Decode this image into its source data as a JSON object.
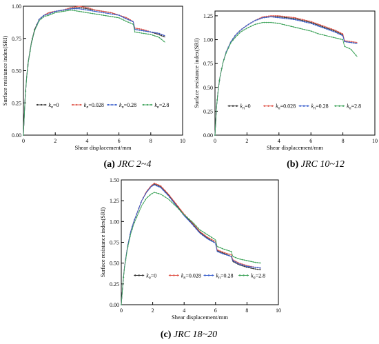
{
  "chart_data": [
    {
      "panel": "a",
      "type": "line",
      "caption_letter": "(a)",
      "caption_text": "JRC 2~4",
      "xlabel": "Shear displacement/mm",
      "ylabel": "Surface resistance index(SRI)",
      "xlim": [
        0,
        10
      ],
      "ylim": [
        0,
        1.0
      ],
      "xticks": [
        0,
        2,
        4,
        6,
        8,
        10
      ],
      "yticks": [
        0.0,
        0.25,
        0.5,
        0.75,
        1.0
      ],
      "ytick_labels": [
        "0.00",
        "0.25",
        "0.50",
        "0.75",
        "1.00"
      ],
      "legend_position": "bottom",
      "series": [
        {
          "name": "kn=0",
          "color": "#333333",
          "x": [
            0,
            0.1,
            0.2,
            0.3,
            0.5,
            0.7,
            1.0,
            1.3,
            1.6,
            2.0,
            2.5,
            3.0,
            3.5,
            4.0,
            4.5,
            5.0,
            5.5,
            6.0,
            6.5,
            6.9,
            7.0,
            7.5,
            8.0,
            8.5,
            8.9
          ],
          "y": [
            0,
            0.28,
            0.45,
            0.57,
            0.72,
            0.82,
            0.9,
            0.93,
            0.95,
            0.96,
            0.97,
            0.98,
            0.99,
            0.98,
            0.97,
            0.96,
            0.95,
            0.93,
            0.9,
            0.88,
            0.82,
            0.81,
            0.8,
            0.78,
            0.76
          ]
        },
        {
          "name": "kn=0.028",
          "color": "#e0554a",
          "x": [
            0,
            0.1,
            0.2,
            0.3,
            0.5,
            0.7,
            1.0,
            1.3,
            1.6,
            2.0,
            2.5,
            3.0,
            3.5,
            4.0,
            4.5,
            5.0,
            5.5,
            6.0,
            6.5,
            6.9,
            7.0,
            7.5,
            8.0,
            8.5,
            8.9
          ],
          "y": [
            0,
            0.27,
            0.44,
            0.56,
            0.71,
            0.81,
            0.9,
            0.93,
            0.95,
            0.96,
            0.97,
            0.99,
            1.0,
            0.99,
            0.97,
            0.96,
            0.95,
            0.93,
            0.91,
            0.88,
            0.83,
            0.82,
            0.8,
            0.79,
            0.77
          ]
        },
        {
          "name": "kn=0.28",
          "color": "#3a5fcd",
          "x": [
            0,
            0.1,
            0.2,
            0.3,
            0.5,
            0.7,
            1.0,
            1.3,
            1.6,
            2.0,
            2.5,
            3.0,
            3.5,
            4.0,
            4.5,
            5.0,
            5.5,
            6.0,
            6.5,
            6.9,
            7.0,
            7.5,
            8.0,
            8.5,
            8.9
          ],
          "y": [
            0,
            0.27,
            0.44,
            0.56,
            0.71,
            0.81,
            0.9,
            0.93,
            0.94,
            0.96,
            0.97,
            0.98,
            0.98,
            0.97,
            0.96,
            0.95,
            0.94,
            0.93,
            0.9,
            0.88,
            0.82,
            0.81,
            0.8,
            0.79,
            0.77
          ]
        },
        {
          "name": "kn=2.8",
          "color": "#3fa45b",
          "x": [
            0,
            0.1,
            0.2,
            0.3,
            0.5,
            0.7,
            1.0,
            1.3,
            1.6,
            2.0,
            2.5,
            3.0,
            3.5,
            4.0,
            4.5,
            5.0,
            5.5,
            6.0,
            6.5,
            6.9,
            7.0,
            7.5,
            8.0,
            8.5,
            8.9
          ],
          "y": [
            0,
            0.27,
            0.44,
            0.56,
            0.71,
            0.81,
            0.89,
            0.92,
            0.93,
            0.95,
            0.96,
            0.97,
            0.96,
            0.95,
            0.94,
            0.93,
            0.92,
            0.91,
            0.88,
            0.86,
            0.8,
            0.79,
            0.78,
            0.76,
            0.72
          ]
        }
      ]
    },
    {
      "panel": "b",
      "type": "line",
      "caption_letter": "(b)",
      "caption_text": "JRC 10~12",
      "xlabel": "Shear displacement/mm",
      "ylabel": "Surface resistance index(SRI)",
      "xlim": [
        0,
        10
      ],
      "ylim": [
        0,
        1.3
      ],
      "xticks": [
        0,
        2,
        4,
        6,
        8,
        10
      ],
      "yticks": [
        0.0,
        0.25,
        0.5,
        0.75,
        1.0,
        1.25
      ],
      "ytick_labels": [
        "0.00",
        "0.25",
        "0.50",
        "0.75",
        "1.00",
        "1.25"
      ],
      "legend_position": "bottom",
      "series": [
        {
          "name": "kn=0",
          "color": "#333333",
          "x": [
            0,
            0.1,
            0.2,
            0.3,
            0.5,
            0.7,
            1.0,
            1.3,
            1.6,
            2.0,
            2.5,
            3.0,
            3.5,
            4.0,
            4.5,
            5.0,
            5.5,
            6.0,
            6.5,
            7.0,
            7.5,
            8.0,
            8.1,
            8.5,
            8.9
          ],
          "y": [
            0,
            0.3,
            0.47,
            0.6,
            0.76,
            0.87,
            0.98,
            1.05,
            1.1,
            1.15,
            1.2,
            1.23,
            1.24,
            1.24,
            1.23,
            1.22,
            1.2,
            1.18,
            1.15,
            1.12,
            1.09,
            1.05,
            0.98,
            0.97,
            0.96
          ]
        },
        {
          "name": "kn=0.028",
          "color": "#e0554a",
          "x": [
            0,
            0.1,
            0.2,
            0.3,
            0.5,
            0.7,
            1.0,
            1.3,
            1.6,
            2.0,
            2.5,
            3.0,
            3.5,
            4.0,
            4.5,
            5.0,
            5.5,
            6.0,
            6.5,
            7.0,
            7.5,
            8.0,
            8.1,
            8.5,
            8.9
          ],
          "y": [
            0,
            0.3,
            0.47,
            0.6,
            0.76,
            0.87,
            0.98,
            1.05,
            1.1,
            1.15,
            1.2,
            1.24,
            1.25,
            1.25,
            1.24,
            1.23,
            1.21,
            1.19,
            1.16,
            1.13,
            1.1,
            1.06,
            0.99,
            0.98,
            0.97
          ]
        },
        {
          "name": "kn=0.28",
          "color": "#3a5fcd",
          "x": [
            0,
            0.1,
            0.2,
            0.3,
            0.5,
            0.7,
            1.0,
            1.3,
            1.6,
            2.0,
            2.5,
            3.0,
            3.5,
            4.0,
            4.5,
            5.0,
            5.5,
            6.0,
            6.5,
            7.0,
            7.5,
            8.0,
            8.1,
            8.5,
            8.9
          ],
          "y": [
            0,
            0.3,
            0.47,
            0.6,
            0.76,
            0.87,
            0.98,
            1.05,
            1.1,
            1.15,
            1.2,
            1.23,
            1.24,
            1.23,
            1.22,
            1.21,
            1.19,
            1.17,
            1.14,
            1.11,
            1.08,
            1.04,
            0.98,
            0.97,
            0.96
          ]
        },
        {
          "name": "kn=2.8",
          "color": "#3fa45b",
          "x": [
            0,
            0.1,
            0.2,
            0.3,
            0.5,
            0.7,
            1.0,
            1.3,
            1.6,
            2.0,
            2.5,
            3.0,
            3.5,
            4.0,
            4.5,
            5.0,
            5.5,
            6.0,
            6.5,
            7.0,
            7.5,
            8.0,
            8.1,
            8.5,
            8.9
          ],
          "y": [
            0,
            0.3,
            0.47,
            0.6,
            0.76,
            0.86,
            0.97,
            1.03,
            1.08,
            1.12,
            1.16,
            1.18,
            1.18,
            1.17,
            1.15,
            1.13,
            1.11,
            1.09,
            1.06,
            1.04,
            1.02,
            1.0,
            0.93,
            0.9,
            0.82
          ]
        }
      ]
    },
    {
      "panel": "c",
      "type": "line",
      "caption_letter": "(c)",
      "caption_text": "JRC 18~20",
      "xlabel": "Shear displacement/mm",
      "ylabel": "Surface resistance index(SRI)",
      "xlim": [
        0,
        10
      ],
      "ylim": [
        0,
        1.5
      ],
      "xticks": [
        0,
        2,
        4,
        6,
        8,
        10
      ],
      "yticks": [
        0.0,
        0.25,
        0.5,
        0.75,
        1.0,
        1.25,
        1.5
      ],
      "ytick_labels": [
        "0.00",
        "0.25",
        "0.50",
        "0.75",
        "1.00",
        "1.25",
        "1.50"
      ],
      "legend_position": "bottom",
      "series": [
        {
          "name": "kn=0",
          "color": "#333333",
          "x": [
            0,
            0.1,
            0.2,
            0.4,
            0.6,
            0.8,
            1.0,
            1.3,
            1.6,
            1.9,
            2.1,
            2.5,
            3.0,
            3.5,
            4.0,
            4.5,
            5.0,
            5.5,
            6.0,
            6.1,
            6.5,
            7.0,
            7.1,
            7.5,
            8.0,
            8.5,
            8.9
          ],
          "y": [
            0,
            0.25,
            0.45,
            0.7,
            0.88,
            1.0,
            1.1,
            1.25,
            1.35,
            1.42,
            1.45,
            1.42,
            1.32,
            1.2,
            1.08,
            0.98,
            0.87,
            0.8,
            0.74,
            0.65,
            0.62,
            0.58,
            0.52,
            0.48,
            0.45,
            0.43,
            0.42
          ]
        },
        {
          "name": "kn=0.028",
          "color": "#e0554a",
          "x": [
            0,
            0.1,
            0.2,
            0.4,
            0.6,
            0.8,
            1.0,
            1.3,
            1.6,
            1.9,
            2.1,
            2.5,
            3.0,
            3.5,
            4.0,
            4.5,
            5.0,
            5.5,
            6.0,
            6.1,
            6.5,
            7.0,
            7.1,
            7.5,
            8.0,
            8.5,
            8.9
          ],
          "y": [
            0,
            0.25,
            0.45,
            0.7,
            0.88,
            1.0,
            1.1,
            1.25,
            1.36,
            1.43,
            1.46,
            1.43,
            1.33,
            1.21,
            1.09,
            0.99,
            0.88,
            0.81,
            0.76,
            0.66,
            0.63,
            0.6,
            0.54,
            0.5,
            0.47,
            0.45,
            0.44
          ]
        },
        {
          "name": "kn=0.28",
          "color": "#3a5fcd",
          "x": [
            0,
            0.1,
            0.2,
            0.4,
            0.6,
            0.8,
            1.0,
            1.3,
            1.6,
            1.9,
            2.1,
            2.5,
            3.0,
            3.5,
            4.0,
            4.5,
            5.0,
            5.5,
            6.0,
            6.1,
            6.5,
            7.0,
            7.1,
            7.5,
            8.0,
            8.5,
            8.9
          ],
          "y": [
            0,
            0.25,
            0.45,
            0.7,
            0.88,
            1.0,
            1.1,
            1.25,
            1.35,
            1.42,
            1.44,
            1.41,
            1.31,
            1.19,
            1.07,
            0.97,
            0.86,
            0.79,
            0.74,
            0.64,
            0.61,
            0.58,
            0.53,
            0.49,
            0.46,
            0.45,
            0.44
          ]
        },
        {
          "name": "kn=2.8",
          "color": "#3fa45b",
          "x": [
            0,
            0.1,
            0.2,
            0.4,
            0.6,
            0.8,
            1.0,
            1.3,
            1.6,
            1.9,
            2.1,
            2.5,
            3.0,
            3.5,
            4.0,
            4.5,
            5.0,
            5.5,
            6.0,
            6.1,
            6.5,
            7.0,
            7.1,
            7.5,
            8.0,
            8.5,
            8.9
          ],
          "y": [
            0,
            0.25,
            0.44,
            0.68,
            0.85,
            0.97,
            1.06,
            1.19,
            1.28,
            1.33,
            1.35,
            1.33,
            1.27,
            1.18,
            1.08,
            1.0,
            0.9,
            0.84,
            0.78,
            0.7,
            0.67,
            0.64,
            0.58,
            0.55,
            0.53,
            0.51,
            0.5
          ]
        }
      ]
    }
  ]
}
